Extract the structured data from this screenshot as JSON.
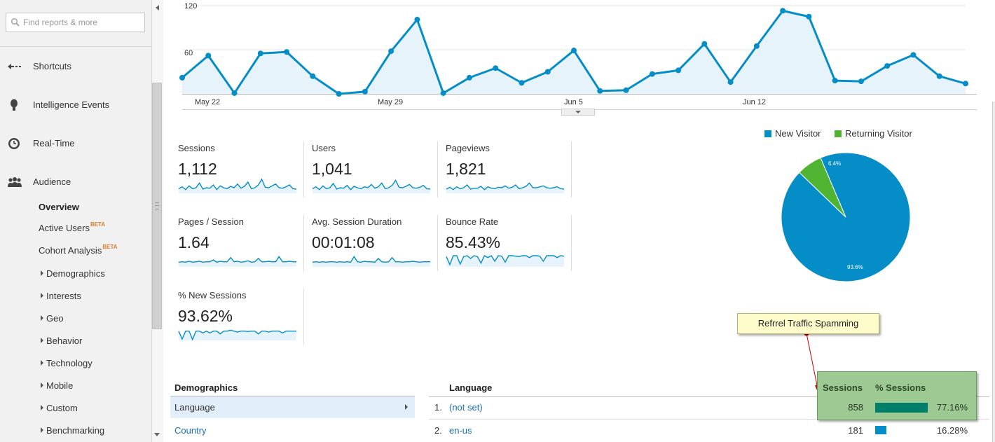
{
  "sidebar": {
    "search_placeholder": "Find reports & more",
    "nav": [
      {
        "label": "Shortcuts",
        "icon": "shortcuts-icon"
      },
      {
        "label": "Intelligence Events",
        "icon": "lightbulb-icon"
      },
      {
        "label": "Real-Time",
        "icon": "clock-icon"
      },
      {
        "label": "Audience",
        "icon": "people-icon"
      }
    ],
    "audience_items": [
      {
        "label": "Overview",
        "beta": "",
        "expandable": false,
        "selected": true
      },
      {
        "label": "Active Users",
        "beta": "BETA",
        "expandable": false
      },
      {
        "label": "Cohort Analysis",
        "beta": "BETA",
        "expandable": false
      },
      {
        "label": "Demographics",
        "expandable": true
      },
      {
        "label": "Interests",
        "expandable": true
      },
      {
        "label": "Geo",
        "expandable": true
      },
      {
        "label": "Behavior",
        "expandable": true
      },
      {
        "label": "Technology",
        "expandable": true
      },
      {
        "label": "Mobile",
        "expandable": true
      },
      {
        "label": "Custom",
        "expandable": true
      },
      {
        "label": "Benchmarking",
        "expandable": true
      }
    ]
  },
  "chart_data": {
    "type": "area",
    "title": "",
    "xlabel": "",
    "ylabel": "",
    "x_tick_labels": [
      "May 22",
      "May 29",
      "Jun 5",
      "Jun 12"
    ],
    "y_tick_labels": [
      "120",
      "60"
    ],
    "ylim": [
      0,
      120
    ],
    "series": [
      {
        "values": [
          22,
          52,
          1,
          55,
          57,
          24,
          0,
          3,
          58,
          101,
          1,
          22,
          35,
          15,
          30,
          59,
          4,
          5,
          27,
          32,
          68,
          16,
          65,
          113,
          105,
          18,
          17,
          38,
          53,
          24,
          14
        ]
      }
    ],
    "color": "#058dc7"
  },
  "metrics": [
    {
      "name": "Sessions",
      "value": "1,112",
      "spark": [
        10,
        14,
        8,
        16,
        10,
        12,
        22,
        9,
        12,
        11,
        18,
        8,
        16,
        12,
        10,
        15,
        12,
        20,
        11,
        15,
        24,
        10,
        12,
        18,
        30,
        13,
        12,
        16,
        20,
        12,
        11,
        14,
        18,
        10,
        9
      ]
    },
    {
      "name": "Users",
      "value": "1,041",
      "spark": [
        10,
        14,
        8,
        16,
        10,
        12,
        21,
        9,
        12,
        11,
        17,
        8,
        15,
        12,
        10,
        14,
        12,
        19,
        11,
        14,
        22,
        10,
        12,
        17,
        28,
        13,
        12,
        15,
        19,
        12,
        11,
        13,
        17,
        10,
        9
      ]
    },
    {
      "name": "Pageviews",
      "value": "1,821",
      "spark": [
        9,
        13,
        8,
        14,
        10,
        12,
        18,
        9,
        11,
        11,
        15,
        8,
        14,
        11,
        10,
        13,
        12,
        16,
        11,
        13,
        18,
        10,
        12,
        15,
        22,
        12,
        12,
        14,
        16,
        12,
        11,
        12,
        14,
        10,
        9
      ]
    },
    {
      "name": "Pages / Session",
      "value": "1.64",
      "spark": [
        10,
        11,
        10,
        12,
        10,
        11,
        12,
        10,
        11,
        11,
        15,
        10,
        12,
        11,
        11,
        20,
        11,
        12,
        10,
        11,
        13,
        10,
        11,
        18,
        11,
        11,
        12,
        11,
        11,
        22,
        11,
        11,
        12,
        11,
        11
      ]
    },
    {
      "name": "Avg. Session Duration",
      "value": "00:01:08",
      "spark": [
        10,
        11,
        10,
        11,
        10,
        11,
        11,
        10,
        11,
        10,
        11,
        10,
        22,
        11,
        10,
        12,
        11,
        11,
        10,
        18,
        11,
        10,
        11,
        20,
        11,
        11,
        10,
        11,
        11,
        12,
        11,
        10,
        11,
        11,
        11
      ]
    },
    {
      "name": "Bounce Rate",
      "value": "85.43%",
      "spark": [
        22,
        5,
        24,
        24,
        6,
        22,
        24,
        18,
        24,
        22,
        8,
        24,
        20,
        24,
        12,
        24,
        23,
        10,
        24,
        24,
        23,
        22,
        24,
        24,
        20,
        24,
        24,
        23,
        12,
        24,
        24,
        24,
        20,
        24,
        23
      ]
    },
    {
      "name": "% New Sessions",
      "value": "93.62%",
      "spark": [
        20,
        3,
        20,
        20,
        2,
        20,
        20,
        16,
        20,
        16,
        20,
        20,
        14,
        20,
        20,
        22,
        20,
        18,
        20,
        20,
        19,
        20,
        20,
        14,
        20,
        20,
        18,
        20,
        20,
        20,
        16,
        20,
        20,
        20,
        20
      ]
    }
  ],
  "pie_chart": {
    "legend": [
      {
        "label": "New Visitor",
        "color": "#058dc7"
      },
      {
        "label": "Returning Visitor",
        "color": "#50b432"
      }
    ],
    "slices": [
      {
        "label": "93.6%",
        "value": 93.6,
        "color": "#058dc7"
      },
      {
        "label": "6.4%",
        "value": 6.4,
        "color": "#50b432"
      }
    ]
  },
  "annotation": {
    "text": "Refrrel Traffic Spamming"
  },
  "demographics": {
    "title": "Demographics",
    "items": [
      "Language",
      "Country"
    ]
  },
  "language_table": {
    "title": "Language",
    "col_sessions": "Sessions",
    "col_pct_sessions": "% Sessions",
    "rows": [
      {
        "num": "1.",
        "name": "(not set)",
        "sessions": "858",
        "pct": "77.16%",
        "bar": 77.16,
        "bar_color": "#00806b"
      },
      {
        "num": "2.",
        "name": "en-us",
        "sessions": "181",
        "pct": "16.28%",
        "bar": 16.28,
        "bar_color": "#058dc7"
      }
    ]
  }
}
